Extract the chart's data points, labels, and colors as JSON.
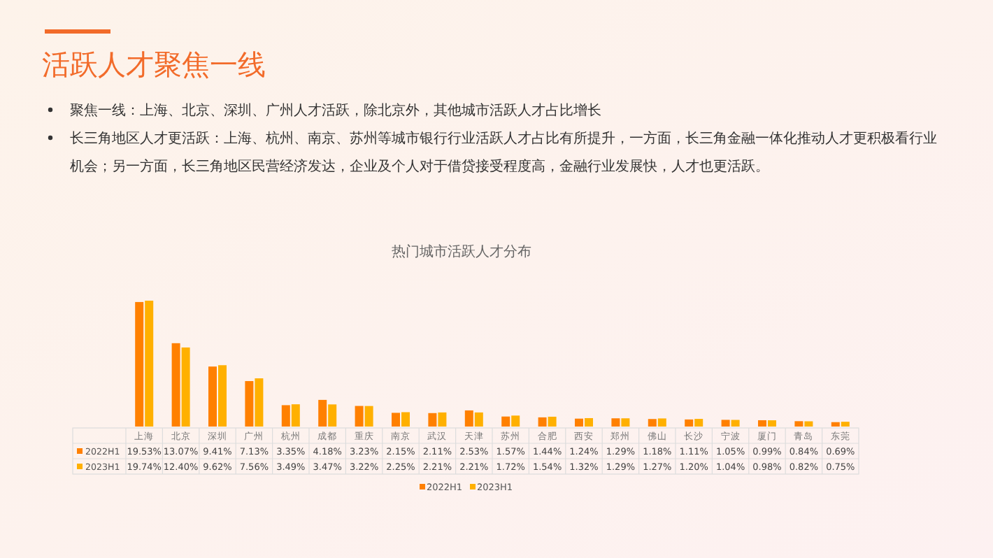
{
  "chart_data": {
    "type": "bar",
    "title": "活跃人才聚焦一线",
    "subtitle": "热门城市活跃人才分布",
    "annotations": [
      "聚焦一线：上海、北京、深圳、广州人才活跃，除北京外，其他城市活跃人才占比增长",
      "长三角地区人才更活跃：上海、杭州、南京、苏州等城市银行行业活跃人才占比有所提升，一方面，长三角金融一体化推动人才更积极看行业机会；另一方面，长三角地区民营经济发达，企业及个人对于借贷接受程度高，金融行业发展快，人才也更活跃。"
    ],
    "categories": [
      "上海",
      "北京",
      "深圳",
      "广州",
      "杭州",
      "成都",
      "重庆",
      "南京",
      "武汉",
      "天津",
      "苏州",
      "合肥",
      "西安",
      "郑州",
      "佛山",
      "长沙",
      "宁波",
      "厦门",
      "青岛",
      "东莞"
    ],
    "series": [
      {
        "name": "2022H1",
        "color": "#ff8000",
        "values": [
          19.53,
          13.07,
          9.41,
          7.13,
          3.35,
          4.18,
          3.23,
          2.15,
          2.11,
          2.53,
          1.57,
          1.44,
          1.24,
          1.29,
          1.18,
          1.11,
          1.05,
          0.99,
          0.84,
          0.69
        ],
        "value_labels": [
          "19.53%",
          "13.07%",
          "9.41%",
          "7.13%",
          "3.35%",
          "4.18%",
          "3.23%",
          "2.15%",
          "2.11%",
          "2.53%",
          "1.57%",
          "1.44%",
          "1.24%",
          "1.29%",
          "1.18%",
          "1.11%",
          "1.05%",
          "0.99%",
          "0.84%",
          "0.69%"
        ]
      },
      {
        "name": "2023H1",
        "color": "#ffb000",
        "values": [
          19.74,
          12.4,
          9.62,
          7.56,
          3.49,
          3.47,
          3.22,
          2.25,
          2.21,
          2.21,
          1.72,
          1.54,
          1.32,
          1.29,
          1.27,
          1.2,
          1.04,
          0.98,
          0.82,
          0.75
        ],
        "value_labels": [
          "19.74%",
          "12.40%",
          "9.62%",
          "7.56%",
          "3.49%",
          "3.47%",
          "3.22%",
          "2.25%",
          "2.21%",
          "2.21%",
          "1.72%",
          "1.54%",
          "1.32%",
          "1.29%",
          "1.27%",
          "1.20%",
          "1.04%",
          "0.98%",
          "0.82%",
          "0.75%"
        ]
      }
    ],
    "legend": "bottom"
  }
}
